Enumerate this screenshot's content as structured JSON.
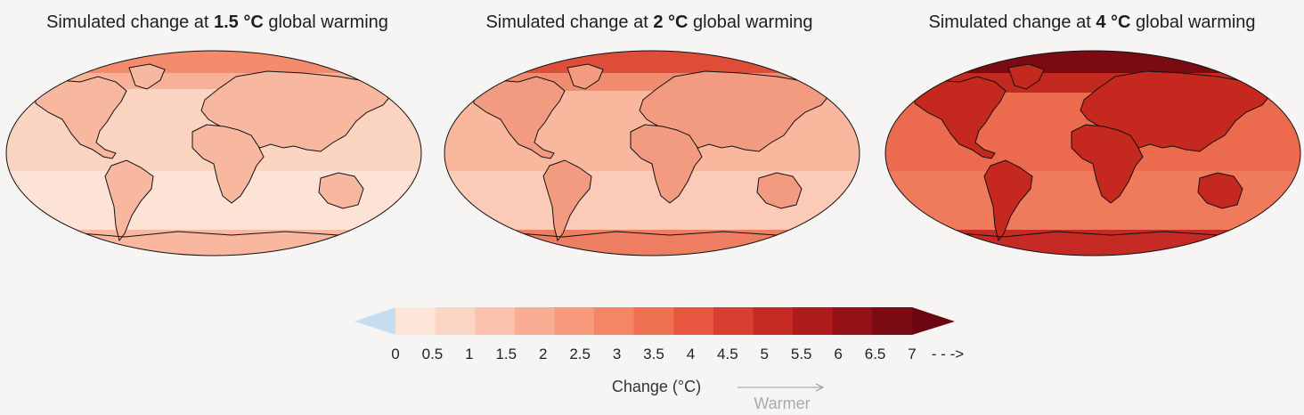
{
  "panels": [
    {
      "title_prefix": "Simulated change at ",
      "level": "1.5 °C",
      "title_suffix": " global warming",
      "warming": 1.5
    },
    {
      "title_prefix": "Simulated change at ",
      "level": "2 °C",
      "title_suffix": " global warming",
      "warming": 2
    },
    {
      "title_prefix": "Simulated change at ",
      "level": "4 °C",
      "title_suffix": " global warming",
      "warming": 4
    }
  ],
  "legend": {
    "ticks": [
      "0",
      "0.5",
      "1",
      "1.5",
      "2",
      "2.5",
      "3",
      "3.5",
      "4",
      "4.5",
      "5",
      "5.5",
      "6",
      "6.5",
      "7"
    ],
    "caption": "Change (°C)",
    "direction_label": "Warmer",
    "more_arrow": "- - ->",
    "colors": [
      "#fde5da",
      "#fcd5c4",
      "#fbc3ad",
      "#f9ad92",
      "#f79a7b",
      "#f48565",
      "#ef6f51",
      "#e7573f",
      "#d83f30",
      "#c52b24",
      "#ae1b1d",
      "#941117",
      "#7b0a12"
    ],
    "below_color": "#c6dcef",
    "above_color": "#6b0610"
  }
}
